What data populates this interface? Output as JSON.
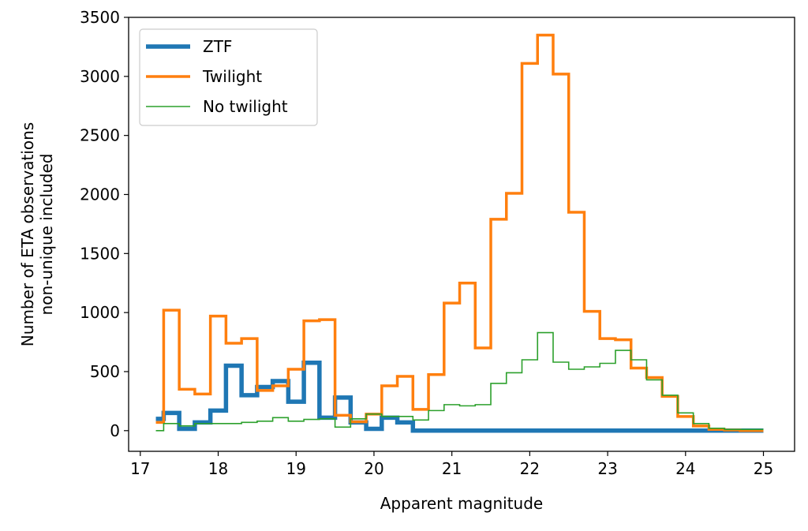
{
  "chart_data": {
    "type": "line",
    "step": true,
    "xlabel": "Apparent magnitude",
    "ylabel": "Number of ETA observations\nnon-unique included",
    "xlim": [
      16.85,
      25.4
    ],
    "ylim": [
      -175,
      3500
    ],
    "xticks": [
      17,
      18,
      19,
      20,
      21,
      22,
      23,
      24,
      25
    ],
    "yticks": [
      0,
      500,
      1000,
      1500,
      2000,
      2500,
      3000,
      3500
    ],
    "grid": false,
    "legend": "top-left",
    "bin_edges": [
      17.2,
      17.3,
      17.5,
      17.7,
      17.9,
      18.1,
      18.3,
      18.5,
      18.7,
      18.9,
      19.1,
      19.3,
      19.5,
      19.7,
      19.9,
      20.1,
      20.3,
      20.5,
      20.7,
      20.9,
      21.1,
      21.3,
      21.5,
      21.7,
      21.9,
      22.1,
      22.3,
      22.5,
      22.7,
      22.9,
      23.1,
      23.3,
      23.5,
      23.7,
      23.9,
      24.1,
      24.3,
      24.5,
      24.7,
      24.9,
      25.0
    ],
    "series": [
      {
        "name": "ZTF",
        "color": "#1f77b4",
        "linewidth": 5.5,
        "values": [
          100,
          150,
          15,
          70,
          170,
          550,
          300,
          370,
          420,
          245,
          575,
          110,
          280,
          70,
          15,
          110,
          70,
          0,
          0,
          0,
          0,
          0,
          0,
          0,
          0,
          0,
          0,
          0,
          0,
          0,
          0,
          0,
          0,
          0,
          0,
          0,
          0,
          0,
          0,
          0
        ]
      },
      {
        "name": "Twilight",
        "color": "#ff7f0e",
        "linewidth": 3.5,
        "values": [
          70,
          1020,
          350,
          310,
          970,
          740,
          780,
          340,
          380,
          520,
          930,
          940,
          130,
          75,
          140,
          380,
          460,
          180,
          475,
          1080,
          1250,
          700,
          1790,
          2010,
          3110,
          3350,
          3020,
          1850,
          1010,
          780,
          770,
          530,
          450,
          290,
          120,
          40,
          10,
          5,
          0,
          0
        ]
      },
      {
        "name": "No twilight",
        "color": "#2ca02c",
        "linewidth": 1.6,
        "values": [
          0,
          60,
          40,
          60,
          60,
          60,
          70,
          80,
          110,
          80,
          95,
          100,
          30,
          100,
          140,
          120,
          120,
          90,
          170,
          220,
          210,
          220,
          400,
          490,
          600,
          830,
          580,
          520,
          540,
          570,
          680,
          600,
          430,
          300,
          150,
          60,
          20,
          10,
          10,
          10
        ]
      }
    ]
  }
}
